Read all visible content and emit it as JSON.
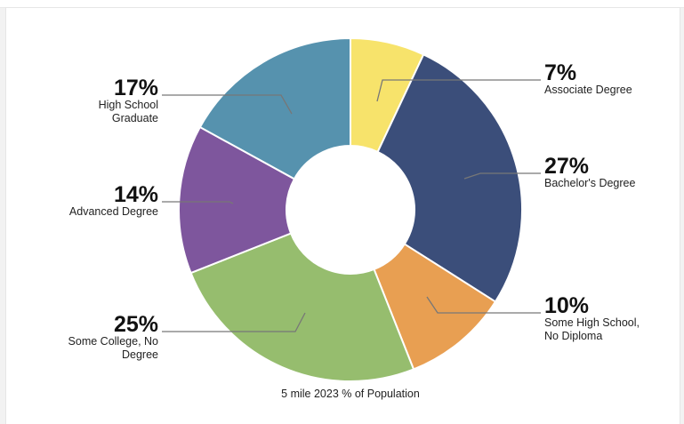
{
  "chart_data": {
    "type": "pie",
    "caption": "5 mile 2023 % of Population",
    "slices": [
      {
        "percent_label": "7%",
        "value": 7,
        "label_lines": [
          "Associate Degree"
        ],
        "color": "#f7e36b"
      },
      {
        "percent_label": "27%",
        "value": 27,
        "label_lines": [
          "Bachelor's Degree"
        ],
        "color": "#3b4e7a"
      },
      {
        "percent_label": "10%",
        "value": 10,
        "label_lines": [
          "Some High School,",
          "No Diploma"
        ],
        "color": "#e89f52"
      },
      {
        "percent_label": "25%",
        "value": 25,
        "label_lines": [
          "Some College, No",
          "Degree"
        ],
        "color": "#96bd6e"
      },
      {
        "percent_label": "14%",
        "value": 14,
        "label_lines": [
          "Advanced Degree"
        ],
        "color": "#7e569d"
      },
      {
        "percent_label": "17%",
        "value": 17,
        "label_lines": [
          "High School",
          "Graduate"
        ],
        "color": "#5692ae"
      }
    ]
  }
}
